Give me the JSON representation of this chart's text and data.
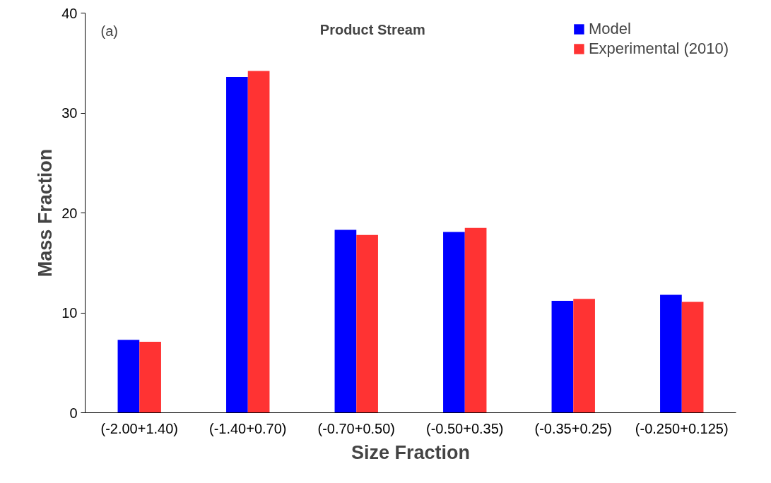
{
  "chart_data": {
    "type": "bar",
    "title": "Product Stream",
    "xlabel": "Size Fraction",
    "ylabel": "Mass Fraction",
    "annotations": [
      "(a)"
    ],
    "categories": [
      "(-2.00+1.40)",
      "(-1.40+0.70)",
      "(-0.70+0.50)",
      "(-0.50+0.35)",
      "(-0.35+0.25)",
      "(-0.250+0.125)"
    ],
    "series": [
      {
        "name": "Model",
        "color": "#0000ff",
        "values": [
          7.3,
          33.6,
          18.3,
          18.1,
          11.2,
          11.8
        ]
      },
      {
        "name": "Experimental (2010)",
        "color": "#ff3333",
        "values": [
          7.1,
          34.2,
          17.8,
          18.5,
          11.4,
          11.1
        ]
      }
    ],
    "ylim": [
      0,
      40
    ],
    "yticks": [
      0,
      10,
      20,
      30,
      40
    ],
    "grid": false,
    "legend": "top right"
  }
}
